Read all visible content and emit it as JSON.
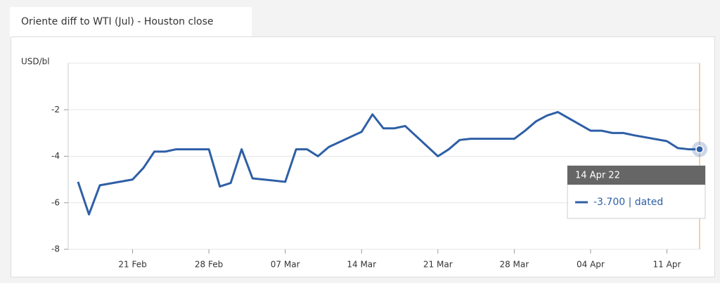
{
  "chart_data": {
    "type": "line",
    "title": "Oriente diff to WTI (Jul) - Houston close",
    "y_label": "USD/bl",
    "x": [
      "2022-02-16",
      "2022-02-17",
      "2022-02-18",
      "2022-02-21",
      "2022-02-22",
      "2022-02-23",
      "2022-02-24",
      "2022-02-25",
      "2022-02-28",
      "2022-03-01",
      "2022-03-02",
      "2022-03-03",
      "2022-03-04",
      "2022-03-07",
      "2022-03-08",
      "2022-03-09",
      "2022-03-10",
      "2022-03-11",
      "2022-03-14",
      "2022-03-15",
      "2022-03-16",
      "2022-03-17",
      "2022-03-18",
      "2022-03-21",
      "2022-03-22",
      "2022-03-23",
      "2022-03-24",
      "2022-03-25",
      "2022-03-28",
      "2022-03-29",
      "2022-03-30",
      "2022-03-31",
      "2022-04-01",
      "2022-04-04",
      "2022-04-05",
      "2022-04-06",
      "2022-04-07",
      "2022-04-08",
      "2022-04-11",
      "2022-04-12",
      "2022-04-13",
      "2022-04-14"
    ],
    "series": [
      {
        "color": "#2e5fa6",
        "values": [
          -5.1,
          -6.5,
          -5.25,
          -5.0,
          -4.5,
          -3.8,
          -3.8,
          -3.7,
          -3.7,
          -5.3,
          -5.15,
          -3.7,
          -4.95,
          -5.1,
          -3.7,
          -3.7,
          -4.0,
          -3.6,
          -2.95,
          -2.2,
          -2.8,
          -2.8,
          -2.7,
          -4.0,
          -3.7,
          -3.3,
          -3.25,
          -3.25,
          -3.25,
          -2.9,
          -2.5,
          -2.25,
          -2.1,
          -2.9,
          -2.9,
          -3.0,
          -3.0,
          -3.1,
          -3.35,
          -3.65,
          -3.7,
          -3.7
        ]
      }
    ],
    "xlim": [
      "2022-02-16",
      "2022-04-14"
    ],
    "xticks": [
      {
        "value": "2022-02-21",
        "label": "21 Feb"
      },
      {
        "value": "2022-02-28",
        "label": "28 Feb"
      },
      {
        "value": "2022-03-07",
        "label": "07 Mar"
      },
      {
        "value": "2022-03-14",
        "label": "14 Mar"
      },
      {
        "value": "2022-03-21",
        "label": "21 Mar"
      },
      {
        "value": "2022-03-28",
        "label": "28 Mar"
      },
      {
        "value": "2022-04-04",
        "label": "04 Apr"
      },
      {
        "value": "2022-04-11",
        "label": "11 Apr"
      }
    ],
    "ylim": [
      -8,
      0
    ],
    "yticks": [
      -8,
      -6,
      -4,
      -2
    ],
    "grid": true,
    "tooltip": {
      "title": "14 Apr 22",
      "text": "-3.700 | dated"
    }
  }
}
